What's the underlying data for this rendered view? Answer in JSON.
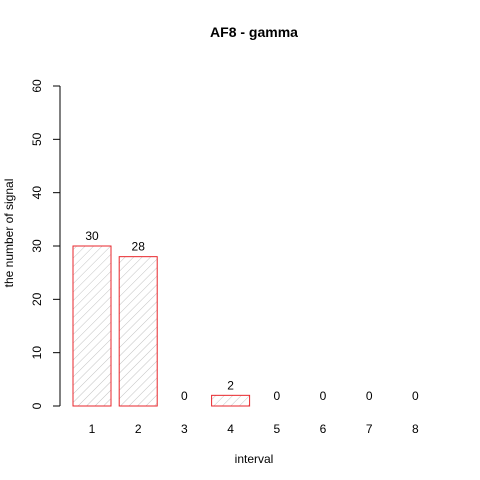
{
  "chart_data": {
    "type": "bar",
    "title": "AF8  -  gamma",
    "xlabel": "interval",
    "ylabel": "the number of signal",
    "categories": [
      "1",
      "2",
      "3",
      "4",
      "5",
      "6",
      "7",
      "8"
    ],
    "values": [
      30,
      28,
      0,
      2,
      0,
      0,
      0,
      0
    ],
    "data_labels": [
      "30",
      "28",
      "0",
      "2",
      "0",
      "0",
      "0",
      "0"
    ],
    "ylim": [
      0,
      60
    ],
    "yticks": [
      0,
      10,
      20,
      30,
      40,
      50,
      60
    ],
    "bar_fill": "hatched",
    "bar_border_color": "#e8262b",
    "hatch_color": "#b4b4b4",
    "grid": false,
    "legend": "none"
  }
}
